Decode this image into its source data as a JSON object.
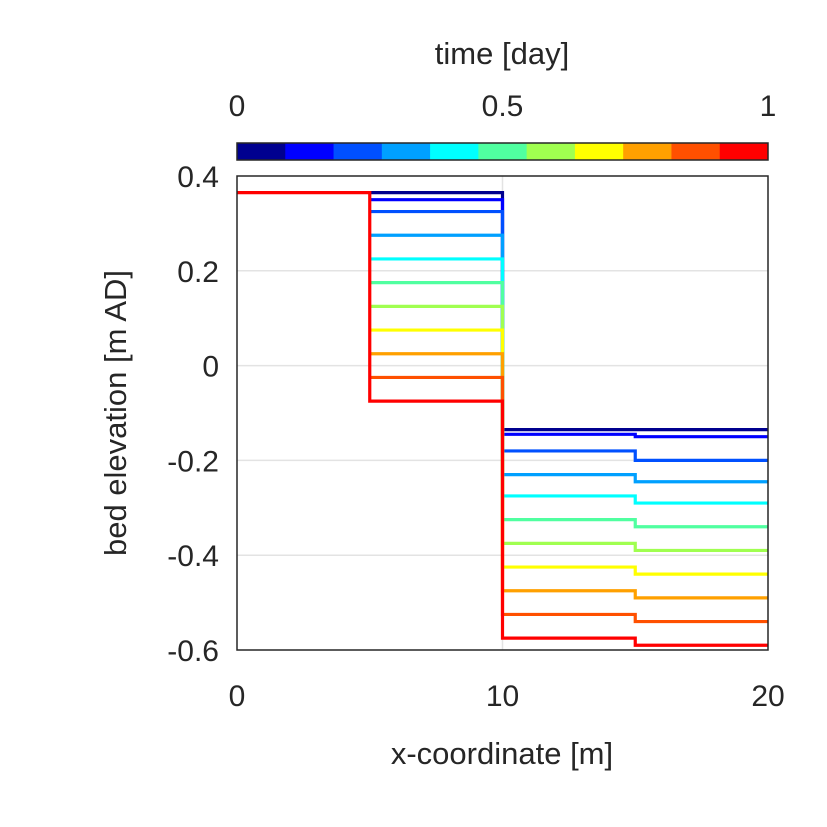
{
  "chart_data": {
    "type": "line",
    "xlabel": "x-coordinate [m]",
    "ylabel": "bed elevation [m AD]",
    "xlim": [
      0,
      20
    ],
    "ylim": [
      -0.6,
      0.4
    ],
    "xticks": [
      0,
      10,
      20
    ],
    "xtick_labels": [
      "0",
      "10",
      "20"
    ],
    "yticks": [
      0.4,
      0.2,
      0,
      -0.2,
      -0.4,
      -0.6
    ],
    "ytick_labels": [
      "0.4",
      "0.2",
      "0",
      "-0.2",
      "-0.4",
      "-0.6"
    ],
    "grid": true,
    "colorbar": {
      "label": "time [day]",
      "orientation": "horizontal",
      "position": "top",
      "range": [
        0,
        1
      ],
      "ticks": [
        0,
        0.5,
        1
      ],
      "tick_labels": [
        "0",
        "0.5",
        "1"
      ],
      "colors": [
        "#00008f",
        "#0000ff",
        "#0050ff",
        "#00a0ff",
        "#00ffff",
        "#50ffa0",
        "#a0ff50",
        "#ffff00",
        "#ffa000",
        "#ff5000",
        "#ff0000"
      ]
    },
    "series": [
      {
        "color": "#00008f",
        "time": 0.0,
        "x": [
          5,
          5,
          10,
          10,
          15,
          15,
          20
        ],
        "y": [
          0.365,
          0.365,
          0.365,
          -0.135,
          -0.135,
          -0.135,
          -0.135
        ]
      },
      {
        "color": "#0000ff",
        "time": 0.1,
        "x": [
          5,
          5,
          10,
          10,
          15,
          15,
          20
        ],
        "y": [
          0.35,
          0.35,
          0.35,
          -0.145,
          -0.145,
          -0.15,
          -0.15
        ]
      },
      {
        "color": "#0050ff",
        "time": 0.2,
        "x": [
          5,
          5,
          10,
          10,
          15,
          15,
          20
        ],
        "y": [
          0.325,
          0.325,
          0.325,
          -0.18,
          -0.18,
          -0.2,
          -0.2
        ]
      },
      {
        "color": "#00a0ff",
        "time": 0.3,
        "x": [
          5,
          5,
          10,
          10,
          15,
          15,
          20
        ],
        "y": [
          0.275,
          0.275,
          0.275,
          -0.23,
          -0.23,
          -0.245,
          -0.245
        ]
      },
      {
        "color": "#00ffff",
        "time": 0.4,
        "x": [
          5,
          5,
          10,
          10,
          15,
          15,
          20
        ],
        "y": [
          0.225,
          0.225,
          0.225,
          -0.275,
          -0.275,
          -0.29,
          -0.29
        ]
      },
      {
        "color": "#50ffa0",
        "time": 0.5,
        "x": [
          5,
          5,
          10,
          10,
          15,
          15,
          20
        ],
        "y": [
          0.175,
          0.175,
          0.175,
          -0.325,
          -0.325,
          -0.34,
          -0.34
        ]
      },
      {
        "color": "#a0ff50",
        "time": 0.6,
        "x": [
          5,
          5,
          10,
          10,
          15,
          15,
          20
        ],
        "y": [
          0.125,
          0.125,
          0.125,
          -0.375,
          -0.375,
          -0.39,
          -0.39
        ]
      },
      {
        "color": "#ffff00",
        "time": 0.7,
        "x": [
          5,
          5,
          10,
          10,
          15,
          15,
          20
        ],
        "y": [
          0.075,
          0.075,
          0.075,
          -0.425,
          -0.425,
          -0.44,
          -0.44
        ]
      },
      {
        "color": "#ffa000",
        "time": 0.8,
        "x": [
          5,
          5,
          10,
          10,
          15,
          15,
          20
        ],
        "y": [
          0.025,
          0.025,
          0.025,
          -0.475,
          -0.475,
          -0.49,
          -0.49
        ]
      },
      {
        "color": "#ff5000",
        "time": 0.9,
        "x": [
          5,
          5,
          10,
          10,
          15,
          15,
          20
        ],
        "y": [
          -0.025,
          -0.025,
          -0.025,
          -0.525,
          -0.525,
          -0.54,
          -0.54
        ]
      },
      {
        "color": "#ff0000",
        "time": 1.0,
        "x": [
          0,
          5,
          5,
          10,
          10,
          15,
          15,
          20
        ],
        "y": [
          0.365,
          0.365,
          -0.075,
          -0.075,
          -0.575,
          -0.575,
          -0.59,
          -0.59
        ]
      }
    ]
  }
}
